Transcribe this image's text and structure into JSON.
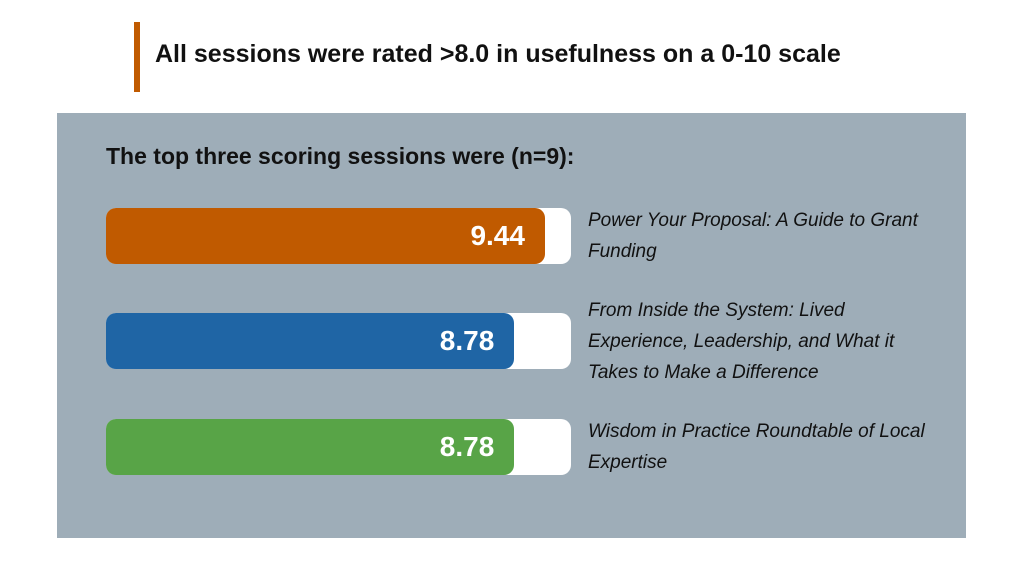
{
  "chart_data": {
    "type": "bar",
    "orientation": "horizontal",
    "title": "All sessions were rated >8.0 in usefulness on a 0-10 scale",
    "subtitle": "The top three scoring sessions were (n=9):",
    "categories": [
      "Power Your Proposal: A Guide to Grant Funding",
      "From Inside the System: Lived Experience, Leadership, and What it Takes to Make a Difference",
      "Wisdom in Practice Roundtable of Local Expertise"
    ],
    "values": [
      9.44,
      8.78,
      8.78
    ],
    "colors": [
      "#c05a00",
      "#1f65a5",
      "#58a447"
    ],
    "xlim": [
      0,
      10
    ]
  }
}
